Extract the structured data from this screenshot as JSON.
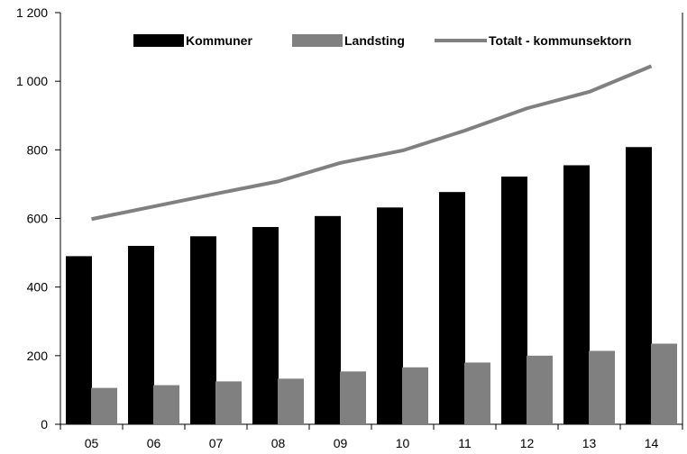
{
  "chart_data": {
    "type": "bar",
    "categories": [
      "05",
      "06",
      "07",
      "08",
      "09",
      "10",
      "11",
      "12",
      "13",
      "14"
    ],
    "series": [
      {
        "name": "Kommuner",
        "type": "bar",
        "color": "#000000",
        "values": [
          490,
          520,
          548,
          575,
          607,
          632,
          677,
          722,
          755,
          808
        ]
      },
      {
        "name": "Landsting",
        "type": "bar",
        "color": "#808080",
        "values": [
          106,
          114,
          125,
          133,
          154,
          166,
          180,
          200,
          214,
          235
        ]
      },
      {
        "name": "Totalt -  kommunsektorn",
        "type": "line",
        "color": "#808080",
        "values": [
          598,
          635,
          672,
          708,
          762,
          798,
          856,
          921,
          969,
          1044
        ]
      }
    ],
    "title": "",
    "xlabel": "",
    "ylabel": "",
    "ylim": [
      0,
      1200
    ],
    "yticks": [
      0,
      200,
      400,
      600,
      800,
      1000,
      1200
    ],
    "ytick_labels": [
      "0",
      "200",
      "400",
      "600",
      "800",
      "1 000",
      "1 200"
    ],
    "grid": false,
    "legend": "top"
  }
}
